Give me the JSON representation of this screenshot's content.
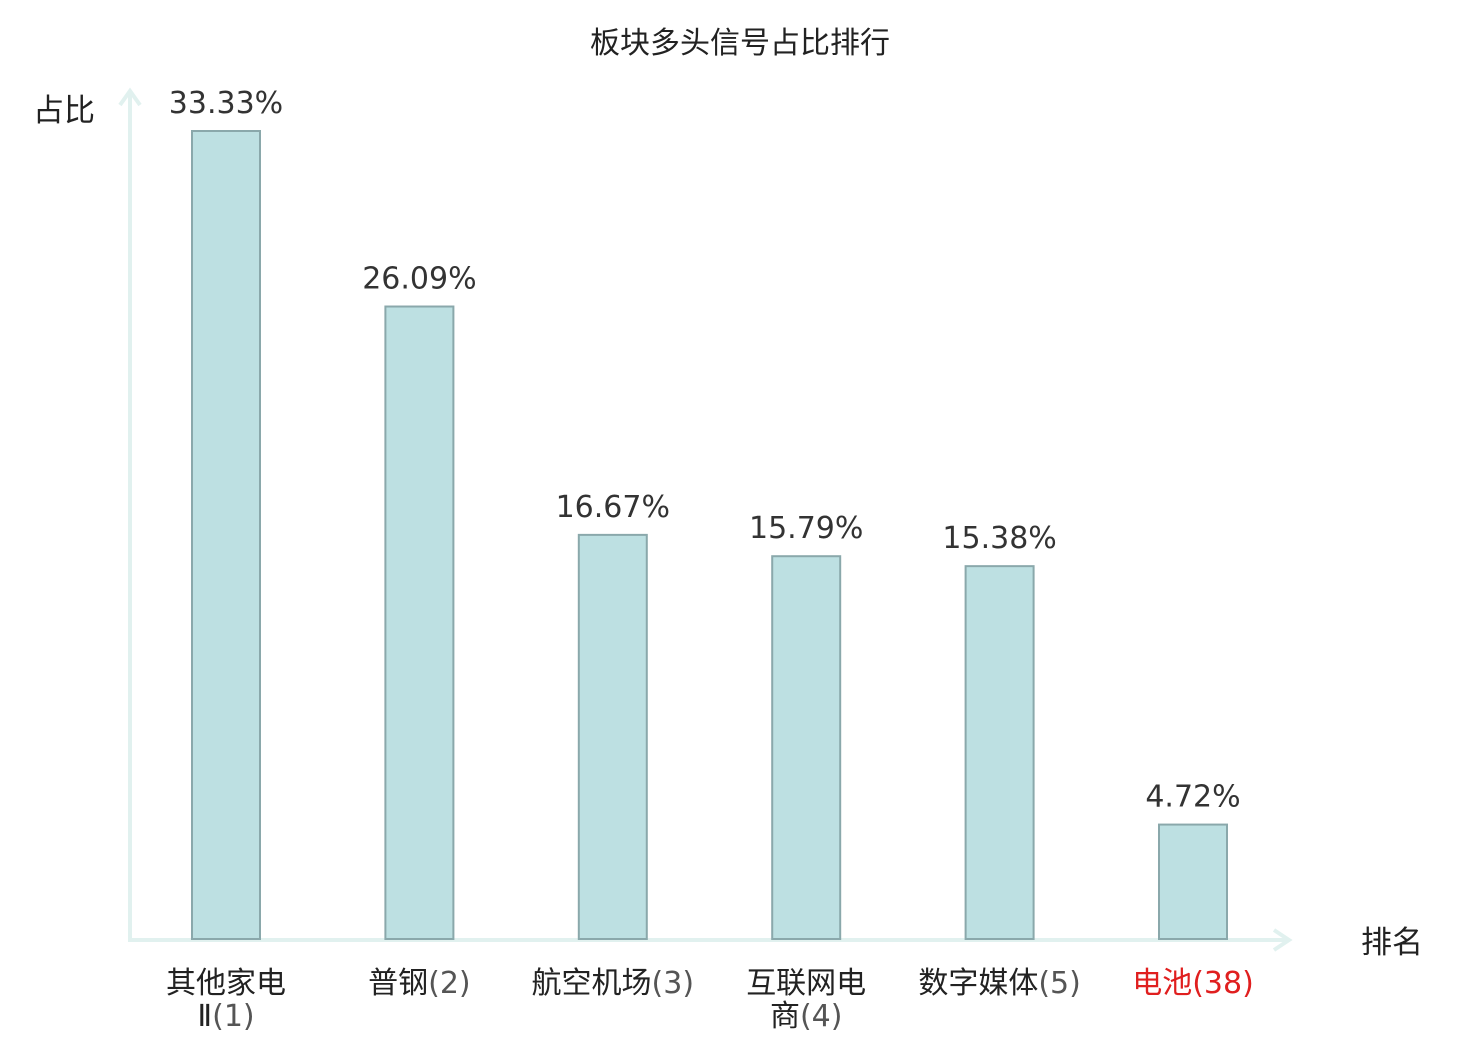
{
  "chart_data": {
    "type": "bar",
    "title": "板块多头信号占比排行",
    "ylabel": "占比",
    "xlabel": "排名",
    "categories": [
      {
        "lines": [
          "其他家电",
          "Ⅱ"
        ],
        "rank": "(1)",
        "highlight": false
      },
      {
        "lines": [
          "普钢"
        ],
        "rank": "(2)",
        "highlight": false
      },
      {
        "lines": [
          "航空机场"
        ],
        "rank": "(3)",
        "highlight": false
      },
      {
        "lines": [
          "互联网电",
          "商"
        ],
        "rank": "(4)",
        "highlight": false
      },
      {
        "lines": [
          "数字媒体"
        ],
        "rank": "(5)",
        "highlight": false
      },
      {
        "lines": [
          "电池"
        ],
        "rank": "(38)",
        "highlight": true
      }
    ],
    "values": [
      33.33,
      26.09,
      16.67,
      15.79,
      15.38,
      4.72
    ],
    "value_labels": [
      "33.33%",
      "26.09%",
      "16.67%",
      "15.79%",
      "15.38%",
      "4.72%"
    ],
    "ylim": [
      0,
      33.33
    ],
    "grid": false,
    "legend": "none",
    "colors": {
      "bar_fill": "#bde0e2",
      "bar_stroke": "#8aa8ab",
      "axis": "#e1f1ef",
      "highlight": "#e01f1f"
    }
  }
}
